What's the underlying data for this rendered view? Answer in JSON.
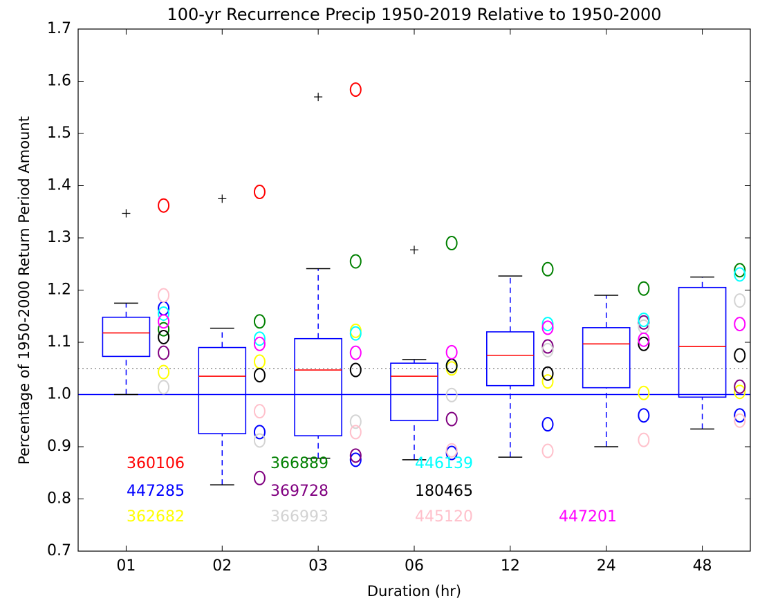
{
  "chart_data": {
    "type": "box",
    "title": "100-yr Recurrence Precip 1950-2019 Relative to 1950-2000",
    "xlabel": "Duration (hr)",
    "ylabel": "Percentage of 1950-2000 Return Period Amount",
    "categories": [
      "01",
      "02",
      "03",
      "06",
      "12",
      "24",
      "48"
    ],
    "ylim": [
      0.7,
      1.7
    ],
    "yticks": [
      0.7,
      0.8,
      0.9,
      {
        "value": 1.0,
        "label": "1.0"
      },
      1.1,
      1.2,
      1.3,
      1.4,
      1.5,
      1.6,
      1.7
    ],
    "box_color": "blue",
    "median_color": "red",
    "cap_color": "black",
    "flier_color": "black",
    "boxes": [
      {
        "whislo": 1.0,
        "q1": 1.073,
        "med": 1.118,
        "q3": 1.148,
        "whishi": 1.175,
        "fliers": [
          1.347
        ]
      },
      {
        "whislo": 0.827,
        "q1": 0.925,
        "med": 1.035,
        "q3": 1.09,
        "whishi": 1.127,
        "fliers": [
          1.375
        ]
      },
      {
        "whislo": 0.878,
        "q1": 0.921,
        "med": 1.047,
        "q3": 1.107,
        "whishi": 1.241,
        "fliers": [
          1.57
        ]
      },
      {
        "whislo": 0.875,
        "q1": 0.95,
        "med": 1.035,
        "q3": 1.06,
        "whishi": 1.067,
        "fliers": [
          1.277
        ]
      },
      {
        "whislo": 0.88,
        "q1": 1.017,
        "med": 1.075,
        "q3": 1.12,
        "whishi": 1.227,
        "fliers": []
      },
      {
        "whislo": 0.9,
        "q1": 1.013,
        "med": 1.097,
        "q3": 1.128,
        "whishi": 1.19,
        "fliers": []
      },
      {
        "whislo": 0.934,
        "q1": 0.995,
        "med": 1.092,
        "q3": 1.205,
        "whishi": 1.225,
        "fliers": []
      }
    ],
    "reference_lines": [
      {
        "value": 1.0,
        "color": "blue",
        "style": "solid"
      },
      {
        "value": 1.05,
        "color": "#999999",
        "style": "dotted"
      }
    ],
    "series": [
      {
        "name": "360106",
        "color": "red",
        "values": [
          1.362,
          1.388,
          1.584,
          null,
          null,
          null,
          null
        ]
      },
      {
        "name": "447285",
        "color": "blue",
        "values": [
          1.165,
          0.928,
          0.875,
          0.888,
          0.943,
          0.96,
          0.96
        ]
      },
      {
        "name": "362682",
        "color": "yellow",
        "values": [
          1.043,
          1.063,
          1.122,
          1.05,
          1.025,
          1.003,
          1.005
        ]
      },
      {
        "name": "366889",
        "color": "green",
        "values": [
          1.125,
          1.14,
          1.255,
          1.29,
          1.24,
          1.203,
          1.238
        ]
      },
      {
        "name": "369728",
        "color": "purple",
        "values": [
          1.08,
          0.84,
          0.883,
          0.953,
          1.092,
          1.138,
          1.015
        ]
      },
      {
        "name": "366993",
        "color": "lightgray",
        "values": [
          1.014,
          0.912,
          0.948,
          0.999,
          1.085,
          1.13,
          1.18
        ]
      },
      {
        "name": "446139",
        "color": "cyan",
        "values": [
          1.155,
          1.107,
          1.117,
          1.055,
          1.135,
          1.143,
          1.23
        ]
      },
      {
        "name": "180465",
        "color": "black",
        "values": [
          1.11,
          1.037,
          1.047,
          1.055,
          1.04,
          1.097,
          1.075
        ]
      },
      {
        "name": "445120",
        "color": "pink",
        "values": [
          1.19,
          0.968,
          0.928,
          0.893,
          0.892,
          0.913,
          0.95
        ]
      },
      {
        "name": "447201",
        "color": "magenta",
        "values": [
          1.14,
          1.097,
          1.08,
          1.081,
          1.128,
          1.105,
          1.135
        ]
      }
    ]
  }
}
